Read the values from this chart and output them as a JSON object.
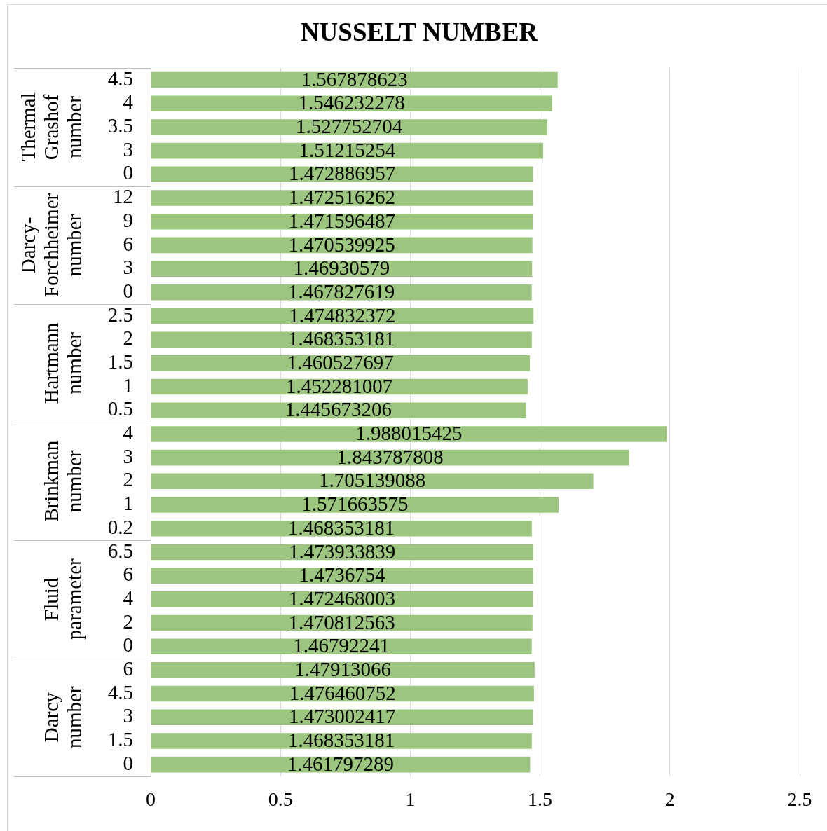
{
  "chart_data": {
    "type": "bar",
    "orientation": "horizontal",
    "title": "NUSSELT NUMBER",
    "categories": [
      "4.5",
      "4",
      "3.5",
      "3",
      "0",
      "12",
      "9",
      "6",
      "3",
      "0",
      "2.5",
      "2",
      "1.5",
      "1",
      "0.5",
      "4",
      "3",
      "2",
      "1",
      "0.2",
      "6.5",
      "6",
      "4",
      "2",
      "0",
      "6",
      "4.5",
      "3",
      "1.5",
      "0"
    ],
    "values": [
      1.567878623,
      1.546232278,
      1.527752704,
      1.51215254,
      1.472886957,
      1.472516262,
      1.471596487,
      1.470539925,
      1.46930579,
      1.467827619,
      1.474832372,
      1.468353181,
      1.460527697,
      1.452281007,
      1.445673206,
      1.988015425,
      1.843787808,
      1.705139088,
      1.571663575,
      1.468353181,
      1.473933839,
      1.4736754,
      1.472468003,
      1.470812563,
      1.46792241,
      1.47913066,
      1.476460752,
      1.473002417,
      1.468353181,
      1.461797289
    ],
    "color": "#9cc67f",
    "xlim": [
      0,
      2.5
    ],
    "xticks": [
      0,
      0.5,
      1,
      1.5,
      2,
      2.5
    ],
    "grid": "x",
    "data_labels": true,
    "annotations": [
      "Thermal Grashof number",
      "Darcy-Forchheimer number",
      "Hartmann number",
      "Brinkman number",
      "Fluid parameter",
      "Darcy number"
    ]
  }
}
